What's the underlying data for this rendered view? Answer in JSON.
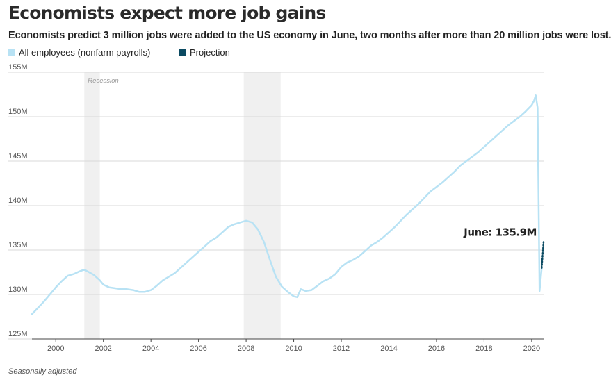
{
  "header": {
    "title": "Economists expect more job gains",
    "subtitle": "Economists predict 3 million jobs were added to the US economy in June, two months after more than 20 million jobs were lost."
  },
  "legend": [
    {
      "label": "All employees (nonfarm payrolls)",
      "color": "#b8e2f4"
    },
    {
      "label": "Projection",
      "color": "#0b4a62"
    }
  ],
  "footnote": "Seasonally adjusted",
  "chart_data": {
    "type": "line",
    "title": "Economists expect more job gains",
    "xlabel": "",
    "ylabel": "",
    "xlim": [
      1999,
      2020.5
    ],
    "ylim": [
      125,
      155
    ],
    "y_unit": "M",
    "grid": true,
    "x_ticks": [
      "2000",
      "2002",
      "2004",
      "2006",
      "2008",
      "2010",
      "2012",
      "2014",
      "2016",
      "2018",
      "2020"
    ],
    "y_ticks": [
      "125M",
      "130M",
      "135M",
      "140M",
      "145M",
      "150M",
      "155M"
    ],
    "recessions": [
      {
        "start": 2001.2,
        "end": 2001.85,
        "label": "Recession"
      },
      {
        "start": 2007.9,
        "end": 2009.45,
        "label": ""
      }
    ],
    "series": [
      {
        "name": "All employees (nonfarm payrolls)",
        "color": "#b8e2f4",
        "style": "solid",
        "points": [
          [
            1999.0,
            127.8
          ],
          [
            1999.25,
            128.5
          ],
          [
            1999.5,
            129.2
          ],
          [
            1999.75,
            130.0
          ],
          [
            2000.0,
            130.8
          ],
          [
            2000.25,
            131.5
          ],
          [
            2000.5,
            132.1
          ],
          [
            2000.75,
            132.3
          ],
          [
            2001.0,
            132.6
          ],
          [
            2001.2,
            132.8
          ],
          [
            2001.4,
            132.5
          ],
          [
            2001.6,
            132.2
          ],
          [
            2001.85,
            131.6
          ],
          [
            2002.0,
            131.1
          ],
          [
            2002.25,
            130.8
          ],
          [
            2002.5,
            130.7
          ],
          [
            2002.75,
            130.6
          ],
          [
            2003.0,
            130.6
          ],
          [
            2003.25,
            130.5
          ],
          [
            2003.5,
            130.3
          ],
          [
            2003.75,
            130.3
          ],
          [
            2004.0,
            130.5
          ],
          [
            2004.25,
            131.0
          ],
          [
            2004.5,
            131.6
          ],
          [
            2004.75,
            132.0
          ],
          [
            2005.0,
            132.4
          ],
          [
            2005.25,
            133.0
          ],
          [
            2005.5,
            133.6
          ],
          [
            2005.75,
            134.2
          ],
          [
            2006.0,
            134.8
          ],
          [
            2006.25,
            135.4
          ],
          [
            2006.5,
            136.0
          ],
          [
            2006.75,
            136.4
          ],
          [
            2007.0,
            137.0
          ],
          [
            2007.25,
            137.6
          ],
          [
            2007.5,
            137.9
          ],
          [
            2007.75,
            138.1
          ],
          [
            2008.0,
            138.3
          ],
          [
            2008.25,
            138.1
          ],
          [
            2008.5,
            137.3
          ],
          [
            2008.75,
            135.9
          ],
          [
            2009.0,
            133.9
          ],
          [
            2009.25,
            132.0
          ],
          [
            2009.5,
            130.9
          ],
          [
            2009.75,
            130.3
          ],
          [
            2010.0,
            129.8
          ],
          [
            2010.15,
            129.7
          ],
          [
            2010.3,
            130.6
          ],
          [
            2010.5,
            130.4
          ],
          [
            2010.75,
            130.5
          ],
          [
            2011.0,
            131.0
          ],
          [
            2011.25,
            131.5
          ],
          [
            2011.5,
            131.8
          ],
          [
            2011.75,
            132.3
          ],
          [
            2012.0,
            133.1
          ],
          [
            2012.25,
            133.6
          ],
          [
            2012.5,
            133.9
          ],
          [
            2012.75,
            134.3
          ],
          [
            2013.0,
            134.9
          ],
          [
            2013.25,
            135.5
          ],
          [
            2013.5,
            135.9
          ],
          [
            2013.75,
            136.4
          ],
          [
            2014.0,
            137.0
          ],
          [
            2014.25,
            137.6
          ],
          [
            2014.5,
            138.3
          ],
          [
            2014.75,
            139.0
          ],
          [
            2015.0,
            139.6
          ],
          [
            2015.25,
            140.2
          ],
          [
            2015.5,
            140.9
          ],
          [
            2015.75,
            141.6
          ],
          [
            2016.0,
            142.1
          ],
          [
            2016.25,
            142.6
          ],
          [
            2016.5,
            143.2
          ],
          [
            2016.75,
            143.8
          ],
          [
            2017.0,
            144.5
          ],
          [
            2017.25,
            145.0
          ],
          [
            2017.5,
            145.5
          ],
          [
            2017.75,
            146.0
          ],
          [
            2018.0,
            146.6
          ],
          [
            2018.25,
            147.2
          ],
          [
            2018.5,
            147.8
          ],
          [
            2018.75,
            148.4
          ],
          [
            2019.0,
            149.0
          ],
          [
            2019.25,
            149.5
          ],
          [
            2019.5,
            150.0
          ],
          [
            2019.75,
            150.6
          ],
          [
            2020.0,
            151.3
          ],
          [
            2020.1,
            151.8
          ],
          [
            2020.17,
            152.4
          ],
          [
            2020.25,
            151.0
          ],
          [
            2020.33,
            130.4
          ],
          [
            2020.42,
            133.0
          ]
        ]
      },
      {
        "name": "Projection",
        "color": "#0b4a62",
        "style": "dotted",
        "points": [
          [
            2020.42,
            133.0
          ],
          [
            2020.5,
            135.9
          ]
        ]
      }
    ],
    "annotations": [
      {
        "text": "June: 135.9M",
        "x": 2020.5,
        "y": 135.9
      }
    ]
  }
}
